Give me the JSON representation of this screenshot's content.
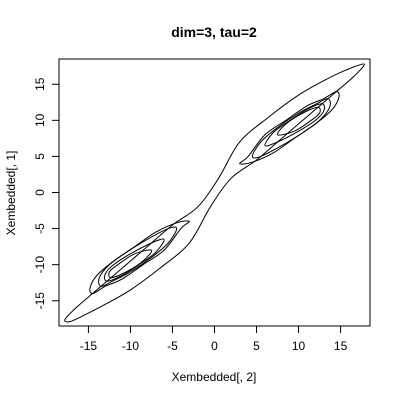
{
  "chart_data": {
    "type": "line",
    "title": "dim=3, tau=2",
    "xlabel": "Xembedded[, 2]",
    "ylabel": "Xembedded[, 1]",
    "xlim": [
      -18.5,
      18.5
    ],
    "ylim": [
      -18.5,
      18.5
    ],
    "xticks": [
      -15,
      -10,
      -5,
      0,
      5,
      10,
      15
    ],
    "yticks": [
      -15,
      -10,
      -5,
      0,
      5,
      10,
      15
    ],
    "grid": false,
    "legend": "none",
    "series": [
      {
        "points": [
          [
            17.8,
            17.8
          ],
          [
            15.5,
            16.9
          ],
          [
            13.0,
            15.5
          ],
          [
            10.0,
            13.5
          ],
          [
            6.5,
            10.5
          ],
          [
            3.0,
            7.0
          ],
          [
            0.5,
            2.0
          ],
          [
            -2.0,
            -2.0
          ],
          [
            -5.0,
            -4.5
          ],
          [
            -8.0,
            -7.5
          ],
          [
            -11.0,
            -10.5
          ],
          [
            -14.0,
            -13.5
          ],
          [
            -16.5,
            -16.0
          ],
          [
            -17.8,
            -17.6
          ],
          [
            -17.2,
            -17.9
          ],
          [
            -15.5,
            -17.0
          ],
          [
            -13.0,
            -15.5
          ],
          [
            -10.0,
            -13.5
          ],
          [
            -6.5,
            -10.5
          ],
          [
            -3.0,
            -7.0
          ],
          [
            -0.5,
            -2.0
          ],
          [
            2.0,
            2.0
          ],
          [
            5.0,
            4.5
          ],
          [
            8.0,
            7.5
          ],
          [
            11.0,
            10.5
          ],
          [
            14.0,
            13.5
          ],
          [
            16.5,
            16.0
          ],
          [
            17.8,
            17.8
          ]
        ]
      },
      {
        "points": [
          [
            14.5,
            14.0
          ],
          [
            13.0,
            13.0
          ],
          [
            11.0,
            12.0
          ],
          [
            8.5,
            10.0
          ],
          [
            6.0,
            8.0
          ],
          [
            4.0,
            5.0
          ],
          [
            3.0,
            4.0
          ],
          [
            4.5,
            4.2
          ],
          [
            7.0,
            5.5
          ],
          [
            9.5,
            7.5
          ],
          [
            12.0,
            9.5
          ],
          [
            14.0,
            11.5
          ],
          [
            14.8,
            13.2
          ],
          [
            14.5,
            14.0
          ]
        ]
      },
      {
        "points": [
          [
            13.5,
            13.0
          ],
          [
            12.0,
            12.2
          ],
          [
            10.0,
            11.0
          ],
          [
            7.5,
            9.0
          ],
          [
            5.5,
            7.0
          ],
          [
            4.5,
            5.0
          ],
          [
            5.5,
            5.0
          ],
          [
            8.0,
            6.5
          ],
          [
            10.5,
            8.3
          ],
          [
            12.5,
            10.0
          ],
          [
            13.7,
            11.8
          ],
          [
            13.5,
            13.0
          ]
        ]
      },
      {
        "points": [
          [
            12.8,
            12.3
          ],
          [
            11.0,
            11.5
          ],
          [
            9.0,
            10.0
          ],
          [
            7.0,
            8.3
          ],
          [
            6.0,
            6.5
          ],
          [
            7.5,
            7.0
          ],
          [
            10.0,
            8.5
          ],
          [
            12.0,
            10.0
          ],
          [
            13.0,
            11.3
          ],
          [
            12.8,
            12.3
          ]
        ]
      },
      {
        "points": [
          [
            12.3,
            11.8
          ],
          [
            10.5,
            11.0
          ],
          [
            8.5,
            9.5
          ],
          [
            7.5,
            8.0
          ],
          [
            9.5,
            8.5
          ],
          [
            11.5,
            10.0
          ],
          [
            12.5,
            11.0
          ],
          [
            12.3,
            11.8
          ]
        ]
      },
      {
        "points": [
          [
            -14.5,
            -14.0
          ],
          [
            -13.0,
            -13.0
          ],
          [
            -11.0,
            -12.0
          ],
          [
            -8.5,
            -10.0
          ],
          [
            -6.0,
            -8.0
          ],
          [
            -4.0,
            -5.0
          ],
          [
            -3.0,
            -4.0
          ],
          [
            -4.5,
            -4.2
          ],
          [
            -7.0,
            -5.5
          ],
          [
            -9.5,
            -7.5
          ],
          [
            -12.0,
            -9.5
          ],
          [
            -14.0,
            -11.5
          ],
          [
            -14.8,
            -13.2
          ],
          [
            -14.5,
            -14.0
          ]
        ]
      },
      {
        "points": [
          [
            -13.5,
            -13.0
          ],
          [
            -12.0,
            -12.2
          ],
          [
            -10.0,
            -11.0
          ],
          [
            -7.5,
            -9.0
          ],
          [
            -5.5,
            -7.0
          ],
          [
            -4.5,
            -5.0
          ],
          [
            -5.5,
            -5.0
          ],
          [
            -8.0,
            -6.5
          ],
          [
            -10.5,
            -8.3
          ],
          [
            -12.5,
            -10.0
          ],
          [
            -13.7,
            -11.8
          ],
          [
            -13.5,
            -13.0
          ]
        ]
      },
      {
        "points": [
          [
            -12.8,
            -12.3
          ],
          [
            -11.0,
            -11.5
          ],
          [
            -9.0,
            -10.0
          ],
          [
            -7.0,
            -8.3
          ],
          [
            -6.0,
            -6.5
          ],
          [
            -7.5,
            -7.0
          ],
          [
            -10.0,
            -8.5
          ],
          [
            -12.0,
            -10.0
          ],
          [
            -13.0,
            -11.3
          ],
          [
            -12.8,
            -12.3
          ]
        ]
      },
      {
        "points": [
          [
            -12.3,
            -11.8
          ],
          [
            -10.5,
            -11.0
          ],
          [
            -8.5,
            -9.5
          ],
          [
            -7.5,
            -8.0
          ],
          [
            -9.5,
            -8.5
          ],
          [
            -11.5,
            -10.0
          ],
          [
            -12.5,
            -11.0
          ],
          [
            -12.3,
            -11.8
          ]
        ]
      }
    ]
  }
}
